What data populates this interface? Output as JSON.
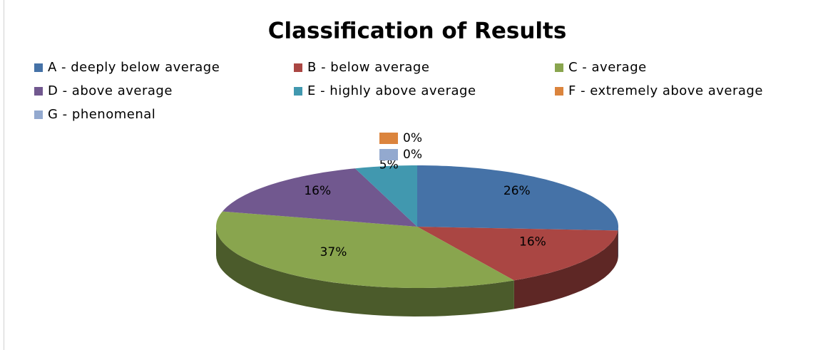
{
  "chart_data": {
    "type": "pie",
    "title": "Classification of Results",
    "categories": [
      "A - deeply below average",
      "B - below average",
      "C - average",
      "D - above average",
      "E - highly above average",
      "F - extremely above average",
      "G - phenomenal"
    ],
    "values": [
      26,
      16,
      37,
      16,
      5,
      0,
      0
    ],
    "value_labels": [
      "26%",
      "16%",
      "37%",
      "16%",
      "5%",
      "0%",
      "0%"
    ],
    "colors": [
      "#4572a7",
      "#aa4643",
      "#89a54e",
      "#71588f",
      "#4198af",
      "#db843d",
      "#93a9cf"
    ],
    "legend": "top"
  }
}
